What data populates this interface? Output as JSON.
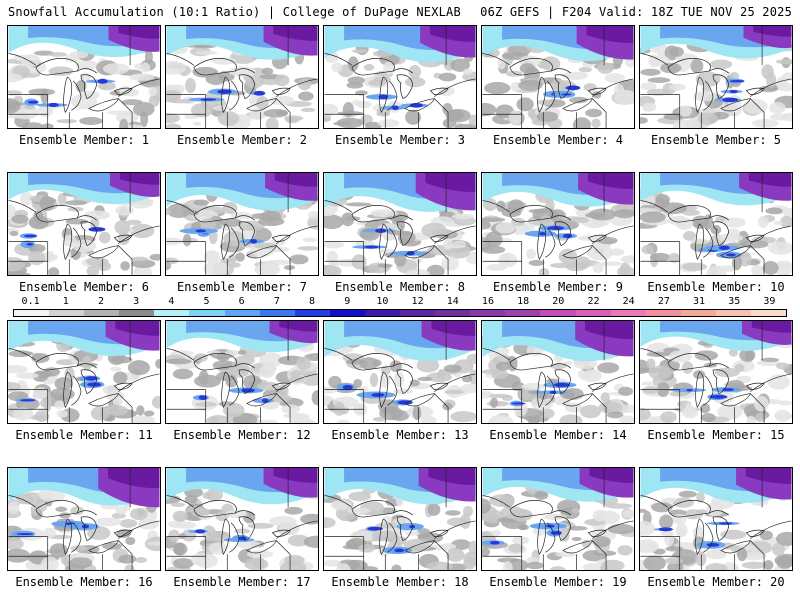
{
  "header": {
    "left_title": "Snowfall Accumulation (10:1 Ratio) | College of DuPage NEXLAB",
    "right_title": "06Z GEFS | F204 Valid: 18Z TUE NOV 25 2025"
  },
  "colorbar": {
    "labels": [
      "0.1",
      "1",
      "2",
      "3",
      "4",
      "5",
      "6",
      "7",
      "8",
      "9",
      "10",
      "12",
      "14",
      "16",
      "18",
      "20",
      "22",
      "24",
      "27",
      "31",
      "35",
      "39"
    ],
    "colors": [
      "#f4f4f4",
      "#d2d2d2",
      "#b2b2b2",
      "#8c8c8c",
      "#b4f0f8",
      "#7cd4f4",
      "#5aa8f4",
      "#3a78ec",
      "#2040e0",
      "#1010c8",
      "#3a1aa8",
      "#5a2aa0",
      "#7030a0",
      "#8838a8",
      "#a040b0",
      "#c050b8",
      "#d860b8",
      "#e87ab8",
      "#f0909c",
      "#f4a898",
      "#f8c0b0",
      "#fcdcc8"
    ]
  },
  "members": [
    {
      "label": "Ensemble Member: 1",
      "coverage": 0.35,
      "heavy": 0.4
    },
    {
      "label": "Ensemble Member: 2",
      "coverage": 0.45,
      "heavy": 0.5
    },
    {
      "label": "Ensemble Member: 3",
      "coverage": 0.55,
      "heavy": 0.55
    },
    {
      "label": "Ensemble Member: 4",
      "coverage": 0.5,
      "heavy": 0.6
    },
    {
      "label": "Ensemble Member: 5",
      "coverage": 0.4,
      "heavy": 0.3
    },
    {
      "label": "Ensemble Member: 6",
      "coverage": 0.35,
      "heavy": 0.35
    },
    {
      "label": "Ensemble Member: 7",
      "coverage": 0.6,
      "heavy": 0.45
    },
    {
      "label": "Ensemble Member: 8",
      "coverage": 0.65,
      "heavy": 0.7
    },
    {
      "label": "Ensemble Member: 9",
      "coverage": 0.45,
      "heavy": 0.55
    },
    {
      "label": "Ensemble Member: 10",
      "coverage": 0.4,
      "heavy": 0.45
    },
    {
      "label": "Ensemble Member: 11",
      "coverage": 0.5,
      "heavy": 0.5
    },
    {
      "label": "Ensemble Member: 12",
      "coverage": 0.35,
      "heavy": 0.3
    },
    {
      "label": "Ensemble Member: 13",
      "coverage": 0.7,
      "heavy": 0.5
    },
    {
      "label": "Ensemble Member: 14",
      "coverage": 0.7,
      "heavy": 0.65
    },
    {
      "label": "Ensemble Member: 15",
      "coverage": 0.3,
      "heavy": 0.35
    },
    {
      "label": "Ensemble Member: 16",
      "coverage": 0.6,
      "heavy": 0.75
    },
    {
      "label": "Ensemble Member: 17",
      "coverage": 0.55,
      "heavy": 0.5
    },
    {
      "label": "Ensemble Member: 18",
      "coverage": 0.55,
      "heavy": 0.6
    },
    {
      "label": "Ensemble Member: 19",
      "coverage": 0.45,
      "heavy": 0.5
    },
    {
      "label": "Ensemble Member: 20",
      "coverage": 0.5,
      "heavy": 0.55
    }
  ]
}
